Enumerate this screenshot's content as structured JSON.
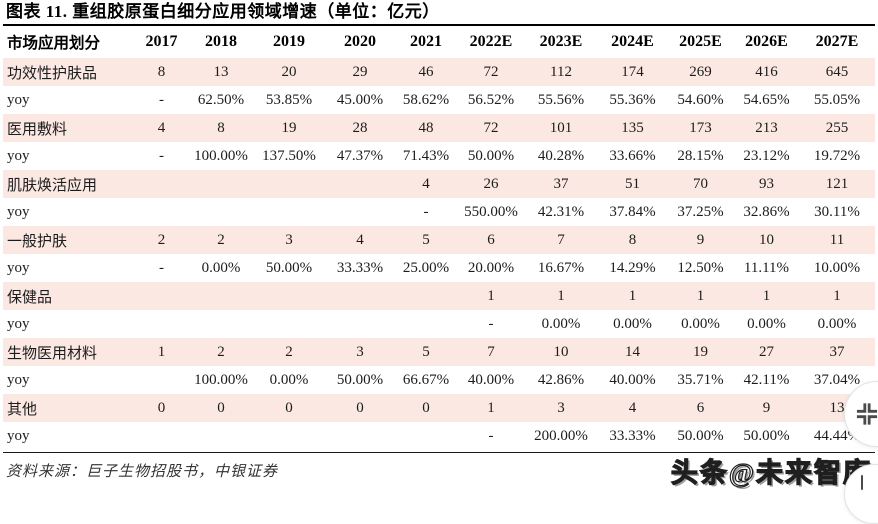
{
  "page": {
    "title": "图表 11. 重组胶原蛋白细分应用领域增速（单位：亿元）",
    "source_note": "资料来源：巨子生物招股书，中银证券",
    "watermark": "头条@未来智库"
  },
  "table": {
    "header": [
      "市场应用划分",
      "2017",
      "2018",
      "2019",
      "2020",
      "2021",
      "2022E",
      "2023E",
      "2024E",
      "2025E",
      "2026E",
      "2027E"
    ],
    "rows": [
      {
        "label": "功效性护肤品",
        "highlight": true,
        "values": [
          "8",
          "13",
          "20",
          "29",
          "46",
          "72",
          "112",
          "174",
          "269",
          "416",
          "645"
        ]
      },
      {
        "label": "yoy",
        "highlight": false,
        "values": [
          "-",
          "62.50%",
          "53.85%",
          "45.00%",
          "58.62%",
          "56.52%",
          "55.56%",
          "55.36%",
          "54.60%",
          "54.65%",
          "55.05%"
        ]
      },
      {
        "label": "医用敷料",
        "highlight": true,
        "values": [
          "4",
          "8",
          "19",
          "28",
          "48",
          "72",
          "101",
          "135",
          "173",
          "213",
          "255"
        ]
      },
      {
        "label": "yoy",
        "highlight": false,
        "values": [
          "-",
          "100.00%",
          "137.50%",
          "47.37%",
          "71.43%",
          "50.00%",
          "40.28%",
          "33.66%",
          "28.15%",
          "23.12%",
          "19.72%"
        ]
      },
      {
        "label": "肌肤焕活应用",
        "highlight": true,
        "values": [
          "",
          "",
          "",
          "",
          "4",
          "26",
          "37",
          "51",
          "70",
          "93",
          "121"
        ]
      },
      {
        "label": "yoy",
        "highlight": false,
        "values": [
          "",
          "",
          "",
          "",
          "-",
          "550.00%",
          "42.31%",
          "37.84%",
          "37.25%",
          "32.86%",
          "30.11%"
        ]
      },
      {
        "label": "一般护肤",
        "highlight": true,
        "values": [
          "2",
          "2",
          "3",
          "4",
          "5",
          "6",
          "7",
          "8",
          "9",
          "10",
          "11"
        ]
      },
      {
        "label": "yoy",
        "highlight": false,
        "values": [
          "-",
          "0.00%",
          "50.00%",
          "33.33%",
          "25.00%",
          "20.00%",
          "16.67%",
          "14.29%",
          "12.50%",
          "11.11%",
          "10.00%"
        ]
      },
      {
        "label": "保健品",
        "highlight": true,
        "values": [
          "",
          "",
          "",
          "",
          "",
          "1",
          "1",
          "1",
          "1",
          "1",
          "1"
        ]
      },
      {
        "label": "yoy",
        "highlight": false,
        "values": [
          "",
          "",
          "",
          "",
          "",
          "-",
          "0.00%",
          "0.00%",
          "0.00%",
          "0.00%",
          "0.00%"
        ]
      },
      {
        "label": "生物医用材料",
        "highlight": true,
        "values": [
          "1",
          "2",
          "2",
          "3",
          "5",
          "7",
          "10",
          "14",
          "19",
          "27",
          "37"
        ]
      },
      {
        "label": "yoy",
        "highlight": false,
        "values": [
          "",
          "100.00%",
          "0.00%",
          "50.00%",
          "66.67%",
          "40.00%",
          "42.86%",
          "40.00%",
          "35.71%",
          "42.11%",
          "37.04%"
        ]
      },
      {
        "label": "其他",
        "highlight": true,
        "values": [
          "0",
          "0",
          "0",
          "0",
          "0",
          "1",
          "3",
          "4",
          "6",
          "9",
          "13"
        ]
      },
      {
        "label": "yoy",
        "highlight": false,
        "values": [
          "",
          "",
          "",
          "",
          "",
          "-",
          "200.00%",
          "33.33%",
          "50.00%",
          "50.00%",
          "44.44%"
        ]
      }
    ]
  },
  "colors": {
    "row_highlight": "#fbe8e2",
    "title_color": "#000000",
    "text_color": "#1c1c1c",
    "source_color": "#333333"
  }
}
